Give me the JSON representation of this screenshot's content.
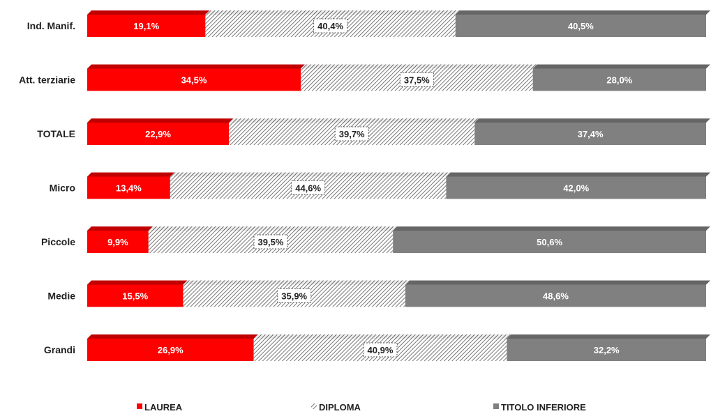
{
  "chart_data": {
    "type": "bar",
    "orientation": "horizontal",
    "stacked": "100%",
    "categories": [
      "Ind. Manif.",
      "Att. terziarie",
      "TOTALE",
      "Micro",
      "Piccole",
      "Medie",
      "Grandi"
    ],
    "series": [
      {
        "name": "LAUREA",
        "values": [
          19.1,
          34.5,
          22.9,
          13.4,
          9.9,
          15.5,
          26.9
        ],
        "labels": [
          "19,1%",
          "34,5%",
          "22,9%",
          "13,4%",
          "9,9%",
          "15,5%",
          "26,9%"
        ],
        "color": "#ff0000"
      },
      {
        "name": "DIPLOMA",
        "values": [
          40.4,
          37.5,
          39.7,
          44.6,
          39.5,
          35.9,
          40.9
        ],
        "labels": [
          "40,4%",
          "37,5%",
          "39,7%",
          "44,6%",
          "39,5%",
          "35,9%",
          "40,9%"
        ],
        "color": "#ffffff",
        "pattern": "diagonal-hatch"
      },
      {
        "name": "TITOLO INFERIORE",
        "values": [
          40.5,
          28.0,
          37.4,
          42.0,
          50.6,
          48.6,
          32.2
        ],
        "labels": [
          "40,5%",
          "28,0%",
          "37,4%",
          "42,0%",
          "50,6%",
          "48,6%",
          "32,2%"
        ],
        "color": "#808080"
      }
    ],
    "xlim": [
      0,
      100
    ],
    "grid": false,
    "legend": "bottom",
    "title": "",
    "xlabel": "",
    "ylabel": ""
  }
}
